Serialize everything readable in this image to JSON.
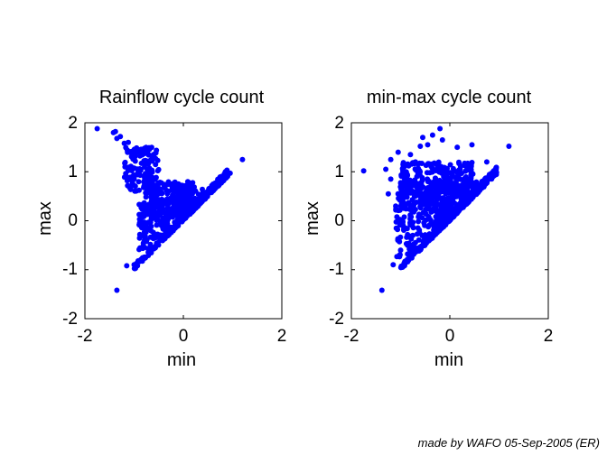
{
  "footer": "made by WAFO 05-Sep-2005 (ER)",
  "marker_color": "#0000ff",
  "chart_data": [
    {
      "type": "scatter",
      "title": "Rainflow cycle count",
      "xlabel": "min",
      "ylabel": "max",
      "xlim": [
        -2,
        2
      ],
      "ylim": [
        -2,
        2
      ],
      "xticks": [
        "-2",
        "0",
        "2"
      ],
      "yticks": [
        "-2",
        "-1",
        "0",
        "1",
        "2"
      ],
      "outliers": [
        [
          -1.75,
          1.88
        ],
        [
          -1.42,
          1.8
        ],
        [
          -1.38,
          1.82
        ],
        [
          -1.35,
          1.68
        ],
        [
          -1.28,
          1.72
        ],
        [
          -1.2,
          1.58
        ],
        [
          -1.12,
          1.6
        ],
        [
          -0.95,
          1.42
        ],
        [
          -0.78,
          1.45
        ],
        [
          -0.62,
          1.33
        ],
        [
          -1.35,
          -1.42
        ],
        [
          -1.15,
          -0.92
        ],
        [
          -1.0,
          -0.9
        ],
        [
          -0.92,
          -0.82
        ],
        [
          1.2,
          1.25
        ],
        [
          0.95,
          0.97
        ],
        [
          0.75,
          0.78
        ]
      ],
      "clusters": [
        {
          "xmin": -1.2,
          "xmax": -0.5,
          "ymin": 0.6,
          "ymax": 1.5,
          "n": 150
        },
        {
          "xmin": -0.8,
          "xmax": 0.2,
          "ymin": 0.1,
          "ymax": 0.8,
          "n": 220
        },
        {
          "xmin": -0.9,
          "xmax": 0.4,
          "ymin": -0.6,
          "ymax": 0.4,
          "n": 300
        },
        {
          "xmin": -0.2,
          "xmax": 0.9,
          "ymin": -0.2,
          "ymax": 0.7,
          "n": 200
        }
      ]
    },
    {
      "type": "scatter",
      "title": "min-max cycle count",
      "xlabel": "min",
      "ylabel": "max",
      "xlim": [
        -2,
        2
      ],
      "ylim": [
        -2,
        2
      ],
      "xticks": [
        "-2",
        "0",
        "2"
      ],
      "yticks": [
        "-2",
        "-1",
        "0",
        "1",
        "2"
      ],
      "outliers": [
        [
          -1.75,
          1.02
        ],
        [
          -1.38,
          -1.42
        ],
        [
          -1.3,
          1.05
        ],
        [
          -1.2,
          1.25
        ],
        [
          -1.15,
          -0.9
        ],
        [
          -1.1,
          0.3
        ],
        [
          -1.25,
          0.55
        ],
        [
          -1.05,
          1.4
        ],
        [
          -0.95,
          1.15
        ],
        [
          -0.8,
          1.35
        ],
        [
          -0.6,
          1.52
        ],
        [
          -0.45,
          1.55
        ],
        [
          -0.35,
          1.75
        ],
        [
          -0.2,
          1.88
        ],
        [
          -0.15,
          1.65
        ],
        [
          -0.55,
          1.7
        ],
        [
          0.15,
          1.5
        ],
        [
          0.45,
          1.55
        ],
        [
          0.75,
          1.2
        ],
        [
          1.2,
          1.52
        ],
        [
          0.9,
          0.92
        ],
        [
          -0.7,
          1.2
        ],
        [
          -1.0,
          -0.6
        ],
        [
          -1.2,
          0.85
        ]
      ],
      "clusters": [
        {
          "xmin": -1.0,
          "xmax": 0.5,
          "ymin": 0.2,
          "ymax": 1.2,
          "n": 260
        },
        {
          "xmin": -1.1,
          "xmax": 0.7,
          "ymin": -0.9,
          "ymax": 0.8,
          "n": 420
        },
        {
          "xmin": -0.3,
          "xmax": 0.95,
          "ymin": -0.1,
          "ymax": 0.85,
          "n": 160
        }
      ]
    }
  ]
}
